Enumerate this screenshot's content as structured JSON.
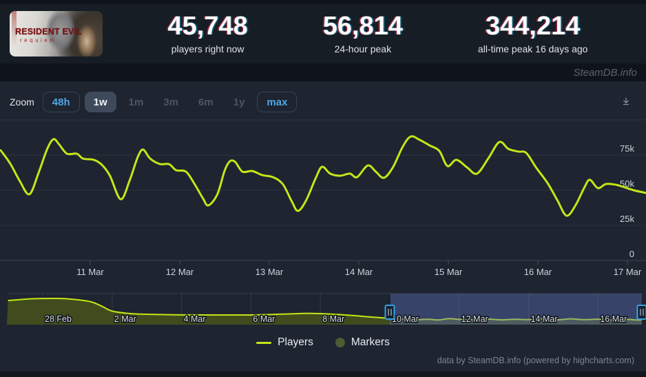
{
  "header": {
    "game": {
      "title": "RESIDENT EVIL",
      "subtitle": "requiem"
    },
    "stats": [
      {
        "value": "45,748",
        "label": "players right now"
      },
      {
        "value": "56,814",
        "label": "24-hour peak"
      },
      {
        "value": "344,214",
        "label": "all-time peak 16 days ago"
      }
    ]
  },
  "watermark": "SteamDB.info",
  "toolbar": {
    "zoom_label": "Zoom",
    "buttons": [
      {
        "label": "48h",
        "state": "enabled-outline"
      },
      {
        "label": "1w",
        "state": "selected"
      },
      {
        "label": "1m",
        "state": "disabled"
      },
      {
        "label": "3m",
        "state": "disabled"
      },
      {
        "label": "6m",
        "state": "disabled"
      },
      {
        "label": "1y",
        "state": "disabled"
      },
      {
        "label": "max",
        "state": "enabled-outline"
      }
    ],
    "download_icon": "download-arrow-to-line"
  },
  "colors": {
    "line": "#c5e617",
    "navigator_fill": "#414c1e",
    "selection_overlay": "rgba(95,115,195,0.40)",
    "handle_border": "#35a3e5",
    "accent_blue": "#4fa7e8",
    "marker_swatch": "#4d5c33",
    "chart_bg": "#1e2430"
  },
  "chart_data": {
    "type": "line",
    "title": "",
    "legend_position": "bottom-center",
    "grid": "horizontal-only",
    "main": {
      "series_name": "Players",
      "ylim": [
        0,
        100000
      ],
      "grid_values": [
        100000,
        75000,
        50000,
        25000,
        0
      ],
      "y_ticks": [
        {
          "label": "75k",
          "value": 75000
        },
        {
          "label": "50k",
          "value": 50000
        },
        {
          "label": "25k",
          "value": 25000
        },
        {
          "label": "0",
          "value": 0
        }
      ],
      "x_ticks": [
        {
          "label": "11 Mar",
          "day": 1
        },
        {
          "label": "12 Mar",
          "day": 2
        },
        {
          "label": "13 Mar",
          "day": 3
        },
        {
          "label": "14 Mar",
          "day": 4
        },
        {
          "label": "15 Mar",
          "day": 5
        },
        {
          "label": "16 Mar",
          "day": 6
        },
        {
          "label": "17 Mar",
          "day": 7
        }
      ],
      "x_unit": "days since 10 Mar 00:00",
      "points": [
        [
          0.0,
          78400
        ],
        [
          0.11,
          68600
        ],
        [
          0.21,
          56900
        ],
        [
          0.32,
          47100
        ],
        [
          0.42,
          61800
        ],
        [
          0.52,
          79400
        ],
        [
          0.59,
          86300
        ],
        [
          0.65,
          82800
        ],
        [
          0.74,
          76000
        ],
        [
          0.85,
          76000
        ],
        [
          0.92,
          72500
        ],
        [
          1.04,
          71600
        ],
        [
          1.13,
          68100
        ],
        [
          1.22,
          60300
        ],
        [
          1.34,
          43600
        ],
        [
          1.44,
          56900
        ],
        [
          1.53,
          73500
        ],
        [
          1.59,
          78900
        ],
        [
          1.67,
          72500
        ],
        [
          1.78,
          68600
        ],
        [
          1.88,
          68600
        ],
        [
          1.96,
          64200
        ],
        [
          2.07,
          63200
        ],
        [
          2.17,
          53900
        ],
        [
          2.26,
          44100
        ],
        [
          2.32,
          39200
        ],
        [
          2.42,
          47100
        ],
        [
          2.5,
          63700
        ],
        [
          2.56,
          70600
        ],
        [
          2.62,
          70100
        ],
        [
          2.7,
          63200
        ],
        [
          2.81,
          63700
        ],
        [
          2.92,
          60800
        ],
        [
          3.04,
          59300
        ],
        [
          3.15,
          54400
        ],
        [
          3.25,
          42200
        ],
        [
          3.32,
          35300
        ],
        [
          3.41,
          42600
        ],
        [
          3.52,
          58800
        ],
        [
          3.59,
          66700
        ],
        [
          3.68,
          61800
        ],
        [
          3.79,
          60300
        ],
        [
          3.9,
          61800
        ],
        [
          3.98,
          59300
        ],
        [
          4.1,
          67600
        ],
        [
          4.19,
          63200
        ],
        [
          4.28,
          58800
        ],
        [
          4.38,
          66200
        ],
        [
          4.49,
          80900
        ],
        [
          4.58,
          88200
        ],
        [
          4.68,
          85800
        ],
        [
          4.79,
          81900
        ],
        [
          4.9,
          77900
        ],
        [
          4.99,
          67200
        ],
        [
          5.09,
          71600
        ],
        [
          5.21,
          66200
        ],
        [
          5.32,
          61800
        ],
        [
          5.45,
          73000
        ],
        [
          5.57,
          84300
        ],
        [
          5.67,
          79400
        ],
        [
          5.78,
          77500
        ],
        [
          5.87,
          76500
        ],
        [
          5.98,
          66200
        ],
        [
          6.11,
          54900
        ],
        [
          6.22,
          42600
        ],
        [
          6.32,
          31900
        ],
        [
          6.42,
          39200
        ],
        [
          6.52,
          52000
        ],
        [
          6.58,
          57400
        ],
        [
          6.67,
          51500
        ],
        [
          6.76,
          54400
        ],
        [
          6.87,
          53900
        ],
        [
          6.95,
          52500
        ],
        [
          7.07,
          50000
        ],
        [
          7.21,
          48000
        ]
      ]
    },
    "navigator": {
      "range": [
        "27 Feb",
        "17 Mar"
      ],
      "ylim": [
        0,
        344000
      ],
      "ticks": [
        {
          "label": "28 Feb",
          "day": 1
        },
        {
          "label": "2 Mar",
          "day": 3
        },
        {
          "label": "4 Mar",
          "day": 5
        },
        {
          "label": "6 Mar",
          "day": 7
        },
        {
          "label": "8 Mar",
          "day": 9
        },
        {
          "label": "10 Mar",
          "day": 11
        },
        {
          "label": "12 Mar",
          "day": 13
        },
        {
          "label": "14 Mar",
          "day": 15
        },
        {
          "label": "16 Mar",
          "day": 17
        }
      ],
      "x_unit": "days since 27 Feb 00:00",
      "selection": {
        "start_day": 11,
        "end_day": 18.26,
        "start_label": "10 Mar",
        "end_label": "17 Mar"
      },
      "points": [
        [
          0,
          267000
        ],
        [
          0.6,
          285000
        ],
        [
          1,
          290000
        ],
        [
          1.6,
          289000
        ],
        [
          2,
          276000
        ],
        [
          2.4,
          252000
        ],
        [
          2.7,
          205000
        ],
        [
          3,
          150000
        ],
        [
          3.5,
          123000
        ],
        [
          4,
          115000
        ],
        [
          5,
          108000
        ],
        [
          6,
          107000
        ],
        [
          7,
          107000
        ],
        [
          7.6,
          113000
        ],
        [
          8,
          118000
        ],
        [
          8.6,
          125000
        ],
        [
          9,
          122000
        ],
        [
          9.5,
          112000
        ],
        [
          10,
          99000
        ],
        [
          10.5,
          83000
        ],
        [
          11,
          69000
        ],
        [
          11.4,
          62000
        ],
        [
          11.8,
          55000
        ],
        [
          12.1,
          60000
        ],
        [
          12.4,
          52000
        ],
        [
          12.7,
          66000
        ],
        [
          13,
          58000
        ],
        [
          13.4,
          52000
        ],
        [
          13.8,
          62000
        ],
        [
          14.2,
          53000
        ],
        [
          14.6,
          60000
        ],
        [
          15,
          55000
        ],
        [
          15.4,
          63000
        ],
        [
          15.8,
          52000
        ],
        [
          16.2,
          64000
        ],
        [
          16.6,
          55000
        ],
        [
          17,
          60000
        ],
        [
          17.4,
          50000
        ],
        [
          17.8,
          58000
        ],
        [
          18.1,
          52000
        ],
        [
          18.26,
          54000
        ]
      ]
    }
  },
  "legend": [
    {
      "label": "Players",
      "swatch": "line"
    },
    {
      "label": "Markers",
      "swatch": "circle"
    }
  ],
  "footer_credits": "data by SteamDB.info (powered by highcharts.com)"
}
